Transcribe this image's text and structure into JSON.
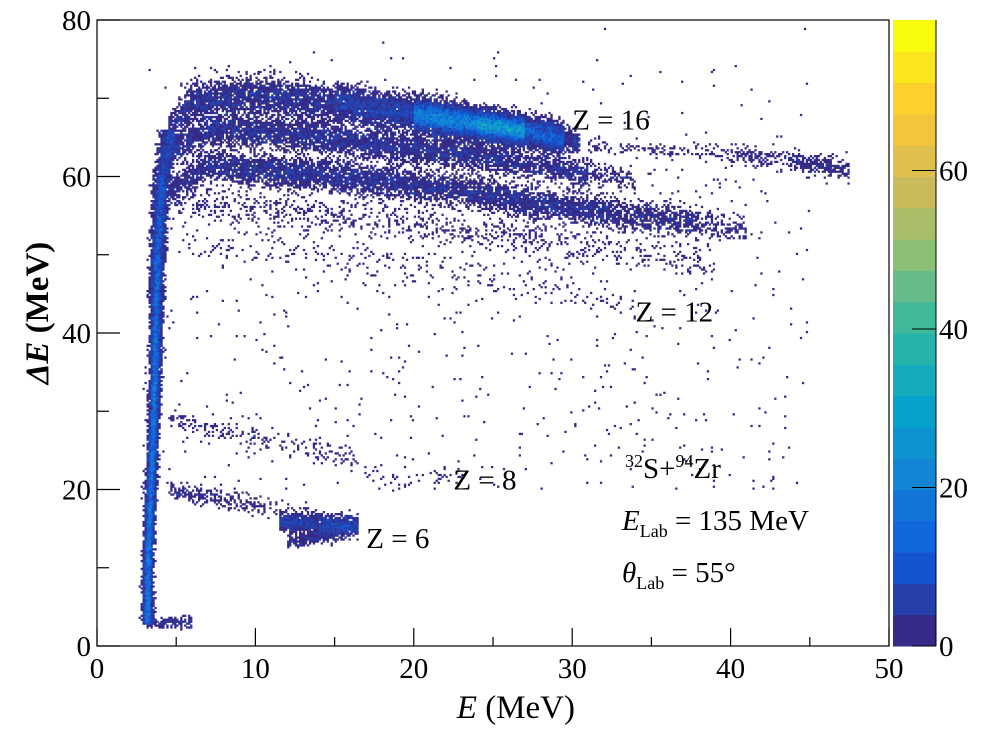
{
  "chart_data": {
    "type": "heatmap",
    "xlabel": "E (MeV)",
    "xlabel_italic_chars": 1,
    "ylabel": "ΔE (MeV)",
    "ylabel_italic_chars": 2,
    "xlim": [
      0,
      50
    ],
    "ylim": [
      0,
      80
    ],
    "zlim": [
      0,
      79
    ],
    "x_ticks": [
      0,
      10,
      20,
      30,
      40,
      50
    ],
    "y_ticks": [
      0,
      20,
      40,
      60,
      80
    ],
    "z_ticks": [
      0,
      20,
      40,
      60
    ],
    "palette": [
      "#352a87",
      "#0f5cdd",
      "#1481d6",
      "#06a4ca",
      "#2eb7a4",
      "#87bf77",
      "#d1bb59",
      "#fec832",
      "#f9fb0e"
    ],
    "color_levels": 20,
    "grid": false,
    "bands": [
      {
        "label": "Z = 16",
        "label_at": [
          30,
          66
        ],
        "locus": [
          [
            4.5,
            66,
            1.2,
            150
          ],
          [
            6,
            69.5,
            1.3,
            260
          ],
          [
            10,
            70.3,
            1.3,
            260
          ],
          [
            15,
            69.3,
            1.2,
            260
          ],
          [
            20,
            68,
            1.0,
            700
          ],
          [
            24,
            66.7,
            0.9,
            2600
          ],
          [
            27,
            65.8,
            0.9,
            1500
          ],
          [
            29.5,
            64.8,
            0.9,
            300
          ],
          [
            30.5,
            64.2,
            0.6,
            40
          ]
        ]
      },
      {
        "locus": [
          [
            31,
            64,
            0.6,
            14
          ],
          [
            40,
            62.8,
            0.6,
            16
          ],
          [
            44,
            62,
            0.7,
            60
          ],
          [
            47,
            61,
            0.7,
            90
          ],
          [
            47.5,
            60.8,
            0.5,
            20
          ]
        ]
      },
      {
        "locus": [
          [
            4.5,
            63,
            1,
            120
          ],
          [
            7,
            66,
            1,
            200
          ],
          [
            12,
            65.5,
            1,
            210
          ],
          [
            20,
            63.5,
            1,
            210
          ],
          [
            26,
            62,
            0.9,
            190
          ],
          [
            31,
            60.5,
            0.8,
            80
          ],
          [
            34,
            59.5,
            0.8,
            10
          ]
        ]
      },
      {
        "locus": [
          [
            4.5,
            58,
            1,
            100
          ],
          [
            7,
            61.5,
            1,
            200
          ],
          [
            15,
            60,
            1,
            210
          ],
          [
            22,
            58.5,
            1,
            190
          ],
          [
            28,
            56.5,
            1,
            190
          ],
          [
            33,
            55.3,
            1,
            150
          ],
          [
            38,
            54,
            1,
            80
          ],
          [
            41,
            53,
            0.8,
            15
          ]
        ]
      },
      {
        "locus": [
          [
            5,
            56.5,
            1,
            30
          ],
          [
            12,
            55.5,
            1.2,
            30
          ],
          [
            22,
            53.5,
            1.2,
            30
          ],
          [
            30,
            51.5,
            1.2,
            25
          ],
          [
            39,
            48.5,
            1,
            12
          ]
        ]
      },
      {
        "label": "Z = 12",
        "label_at": [
          34,
          41.5
        ],
        "locus": [
          [
            5,
            52,
            1,
            8
          ],
          [
            15,
            49.5,
            1.2,
            10
          ],
          [
            25,
            47,
            1.2,
            10
          ],
          [
            34,
            43.5,
            1,
            8
          ]
        ]
      },
      {
        "label": "Z = 8",
        "label_at": [
          22.5,
          20
        ],
        "locus": [
          [
            4.5,
            29,
            0.6,
            22
          ],
          [
            10,
            26.5,
            0.7,
            15
          ],
          [
            15,
            24.5,
            0.8,
            12
          ],
          [
            19,
            21,
            0.6,
            10
          ],
          [
            23,
            22,
            0.5,
            6
          ]
        ]
      },
      {
        "locus": [
          [
            4.5,
            20,
            0.5,
            55
          ],
          [
            10,
            18,
            0.6,
            25
          ],
          [
            12,
            17,
            0.6,
            20
          ],
          [
            16.5,
            15.5,
            0.5,
            30
          ]
        ]
      },
      {
        "label": "Z = 6",
        "label_at": [
          17,
          12.5
        ],
        "locus": [
          [
            11.5,
            15.8,
            0.5,
            150
          ],
          [
            14,
            15.5,
            0.7,
            320
          ],
          [
            16.5,
            15.3,
            0.6,
            320
          ]
        ]
      },
      {
        "locus": [
          [
            12,
            13.2,
            0.4,
            60
          ],
          [
            16,
            14.8,
            0.5,
            90
          ]
        ]
      },
      {
        "locus": [
          [
            3,
            3,
            0.3,
            80
          ],
          [
            6,
            3,
            0.4,
            30
          ]
        ]
      }
    ],
    "punch_through_locus": [
      [
        2.8,
        3.2,
        0.15,
        220
      ],
      [
        10,
        3.2,
        0.15,
        220
      ],
      [
        30,
        3.6,
        0.15,
        220
      ],
      [
        50,
        3.8,
        0.2,
        220
      ],
      [
        60,
        4.1,
        0.25,
        160
      ],
      [
        66,
        4.6,
        0.3,
        100
      ]
    ],
    "annotation": {
      "projectile_mass": "32",
      "projectile": "S",
      "plus": "+",
      "target_mass": "94",
      "target": "Zr",
      "energy_symbol": "E",
      "energy_sub": "Lab",
      "energy_value": " = 135 MeV",
      "angle_symbol": "θ",
      "angle_sub": "Lab",
      "angle_value": " = 55°"
    }
  }
}
